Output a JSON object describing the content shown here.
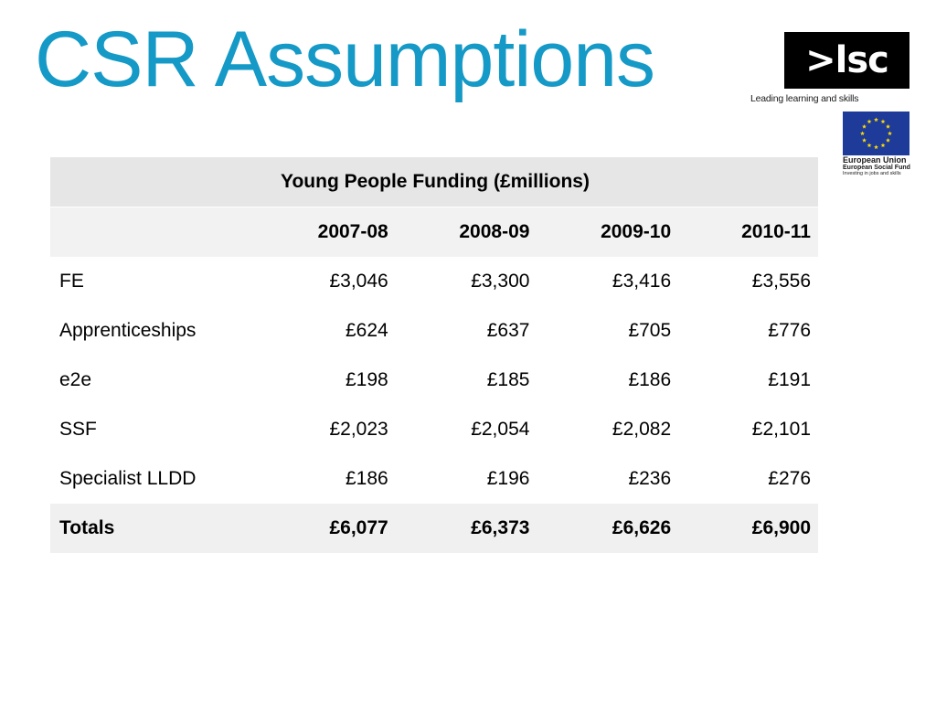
{
  "title": "CSR Assumptions",
  "logos": {
    "lsc_text": ">lsc",
    "lsc_tagline": "Leading learning and skills",
    "eu_line1": "European Union",
    "eu_line2": "European Social Fund",
    "eu_line3": "Investing in jobs and skills",
    "colors": {
      "title": "#1599c6",
      "eu_blue": "#1e3b9a",
      "eu_star": "#ffdd00"
    }
  },
  "table": {
    "caption": "Young People Funding (£millions)",
    "columns": [
      "",
      "2007-08",
      "2008-09",
      "2009-10",
      "2010-11"
    ],
    "rows": [
      {
        "label": "FE",
        "values": [
          "£3,046",
          "£3,300",
          "£3,416",
          "£3,556"
        ]
      },
      {
        "label": "Apprenticeships",
        "values": [
          "£624",
          "£637",
          "£705",
          "£776"
        ]
      },
      {
        "label": "e2e",
        "values": [
          "£198",
          "£185",
          "£186",
          "£191"
        ]
      },
      {
        "label": "SSF",
        "values": [
          "£2,023",
          "£2,054",
          "£2,082",
          "£2,101"
        ]
      },
      {
        "label": "Specialist LLDD",
        "values": [
          "£186",
          "£196",
          "£236",
          "£276"
        ]
      }
    ],
    "totals": {
      "label": "Totals",
      "values": [
        "£6,077",
        "£6,373",
        "£6,626",
        "£6,900"
      ]
    }
  }
}
